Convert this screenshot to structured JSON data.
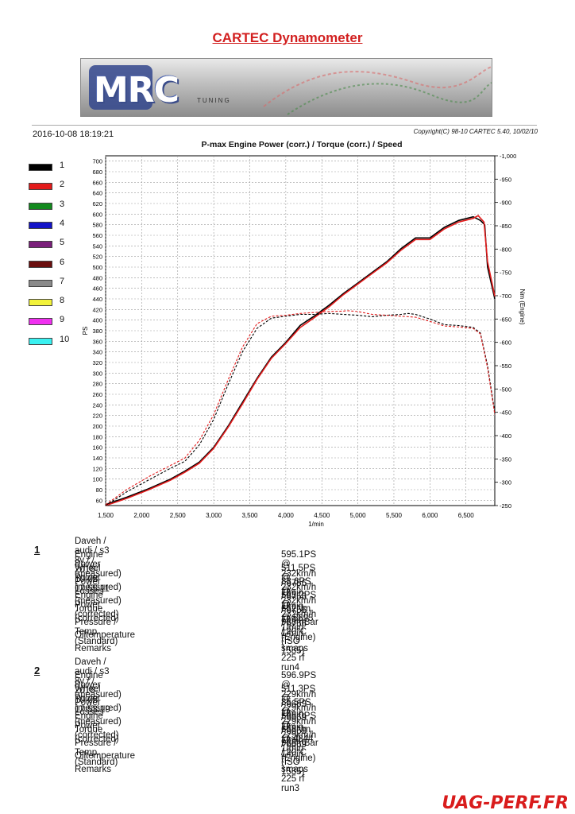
{
  "report_title": "CARTEC Dynamometer",
  "logo": {
    "text": "MRC",
    "subtext": "TUNING"
  },
  "datetime": "2016-10-08 18:19:21",
  "copyright": "Copyright(C) 98-10 CARTEC 5.40, 10/02/10",
  "legend": [
    {
      "label": "1",
      "color": "#000000"
    },
    {
      "label": "2",
      "color": "#e31b1b"
    },
    {
      "label": "3",
      "color": "#138a1e"
    },
    {
      "label": "4",
      "color": "#1414c8"
    },
    {
      "label": "5",
      "color": "#7a1f7a"
    },
    {
      "label": "6",
      "color": "#6b0f0f"
    },
    {
      "label": "7",
      "color": "#8a8a8a"
    },
    {
      "label": "8",
      "color": "#f2f23a"
    },
    {
      "label": "9",
      "color": "#f030f0"
    },
    {
      "label": "10",
      "color": "#3af0f0"
    }
  ],
  "chart_data": {
    "type": "line",
    "title": "P-max Engine Power (corr.) / Torque (corr.) / Speed",
    "xlabel": "1/min",
    "ylabel": "PS",
    "y2label": "Nm (Engine)",
    "xlim": [
      1500,
      6900
    ],
    "ylim": [
      50,
      710
    ],
    "y2lim": [
      250,
      1000
    ],
    "xticks": [
      "1,500",
      "2,000",
      "2,500",
      "3,000",
      "3,500",
      "4,000",
      "4,500",
      "5,000",
      "5,500",
      "6,000",
      "6,500"
    ],
    "xtick_values": [
      1500,
      2000,
      2500,
      3000,
      3500,
      4000,
      4500,
      5000,
      5500,
      6000,
      6500
    ],
    "yticks": [
      60,
      80,
      100,
      120,
      140,
      160,
      180,
      200,
      220,
      240,
      260,
      280,
      300,
      320,
      340,
      360,
      380,
      400,
      420,
      440,
      460,
      480,
      500,
      520,
      540,
      560,
      580,
      600,
      620,
      640,
      660,
      680,
      700
    ],
    "y2ticks": [
      "250",
      "300",
      "350",
      "400",
      "450",
      "500",
      "550",
      "600",
      "650",
      "700",
      "750",
      "800",
      "850",
      "900",
      "950",
      "1,000"
    ],
    "y2tick_values": [
      250,
      300,
      350,
      400,
      450,
      500,
      550,
      600,
      650,
      700,
      750,
      800,
      850,
      900,
      950,
      1000
    ],
    "grid": true,
    "series": [
      {
        "name": "1",
        "kind": "power",
        "color": "#000000",
        "style": "solid",
        "x": [
          1500,
          1800,
          2100,
          2400,
          2600,
          2800,
          3000,
          3200,
          3400,
          3600,
          3800,
          4000,
          4200,
          4400,
          4600,
          4800,
          5000,
          5200,
          5400,
          5600,
          5800,
          6000,
          6200,
          6400,
          6600,
          6700,
          6760,
          6800,
          6900
        ],
        "y": [
          52,
          66,
          82,
          100,
          115,
          132,
          160,
          200,
          245,
          290,
          330,
          358,
          390,
          408,
          428,
          450,
          470,
          490,
          510,
          535,
          555,
          555,
          575,
          588,
          595,
          588,
          580,
          500,
          440
        ]
      },
      {
        "name": "2",
        "kind": "power",
        "color": "#e31b1b",
        "style": "solid",
        "x": [
          1500,
          1800,
          2100,
          2400,
          2600,
          2800,
          3000,
          3200,
          3400,
          3600,
          3800,
          4000,
          4200,
          4400,
          4600,
          4800,
          5000,
          5200,
          5400,
          5600,
          5800,
          6000,
          6200,
          6400,
          6600,
          6670,
          6750,
          6800,
          6900
        ],
        "y": [
          50,
          64,
          80,
          98,
          113,
          130,
          158,
          198,
          242,
          288,
          328,
          356,
          386,
          405,
          425,
          448,
          468,
          488,
          508,
          532,
          552,
          552,
          572,
          585,
          592,
          597,
          585,
          510,
          445
        ]
      },
      {
        "name": "1",
        "kind": "torque",
        "color": "#000000",
        "style": "dashed",
        "x": [
          1500,
          1800,
          2100,
          2400,
          2600,
          2800,
          3000,
          3200,
          3400,
          3600,
          3800,
          4000,
          4200,
          4400,
          4600,
          4800,
          5000,
          5200,
          5400,
          5600,
          5700,
          5800,
          6000,
          6200,
          6400,
          6600,
          6700,
          6800,
          6900
        ],
        "y": [
          250,
          280,
          305,
          330,
          345,
          380,
          435,
          510,
          580,
          630,
          652,
          656,
          660,
          660,
          662,
          660,
          658,
          655,
          658,
          660,
          662,
          660,
          650,
          638,
          636,
          632,
          620,
          550,
          450
        ]
      },
      {
        "name": "2",
        "kind": "torque",
        "color": "#e31b1b",
        "style": "dashed",
        "x": [
          1500,
          1800,
          2100,
          2400,
          2600,
          2800,
          3000,
          3200,
          3400,
          3600,
          3800,
          4000,
          4200,
          4400,
          4600,
          4800,
          4844,
          5000,
          5200,
          5400,
          5600,
          5800,
          6000,
          6200,
          6400,
          6600,
          6700,
          6800,
          6900
        ],
        "y": [
          252,
          285,
          312,
          336,
          352,
          390,
          445,
          520,
          590,
          640,
          656,
          658,
          662,
          664,
          666,
          667,
          668,
          666,
          660,
          658,
          656,
          654,
          645,
          635,
          633,
          630,
          618,
          545,
          445
        ]
      }
    ]
  },
  "runs": [
    {
      "number": "1",
      "header": "Daveh / audi / s3 8v /  / 2016-10-08 17:55:11",
      "rows": [
        {
          "label": "Engine Power (measured)",
          "value": "595.1PS @ 232km/h / 6756 1/min"
        },
        {
          "label": "Wheel Power (measured)",
          "value": "511.5PS @ 232km/h / 6756 1/min"
        },
        {
          "label": "Power Losses (measured)",
          "value": "83.6PS @ 232km/h / 6756 1/min"
        },
        {
          "label": "Engine Power (corrected)",
          "value": "593.2PS @ 232km/h / 6756 1/min"
        },
        {
          "label": "Torque (corrected)",
          "value": "662Nm @ 5695 1/min (Engine)"
        },
        {
          "label": "Pressure / Temp. (Standard)",
          "value": "988mBar / 20°C   (ISO 1585)"
        },
        {
          "label": "Oiltemperature",
          "value": "--"
        },
        {
          "label": "Remarks",
          "value": "smaps 225 rf run4"
        }
      ]
    },
    {
      "number": "2",
      "header": "Daveh / audi / s3 8v /  / 2016-10-08 17:53:19",
      "rows": [
        {
          "label": "Engine Power (measured)",
          "value": "596.9PS @ 229km/h / 6669 1/min"
        },
        {
          "label": "Wheel Power (measured)",
          "value": "511.3PS @ 229km/h / 6669 1/min"
        },
        {
          "label": "Power Losses (measured)",
          "value": "85.5PS @ 229km/h / 6669 1/min"
        },
        {
          "label": "Engine Power (corrected)",
          "value": "595.0PS @ 229km/h / 6669 1/min"
        },
        {
          "label": "Torque (corrected)",
          "value": "668Nm @ 4844 1/min (Engine)"
        },
        {
          "label": "Pressure / Temp. (Standard)",
          "value": "988mBar / 20°C   (ISO 1585)"
        },
        {
          "label": "Oiltemperature",
          "value": "--"
        },
        {
          "label": "Remarks",
          "value": "smaps 225 rf run3"
        }
      ]
    }
  ],
  "watermark": "UAG-PERF.FR"
}
